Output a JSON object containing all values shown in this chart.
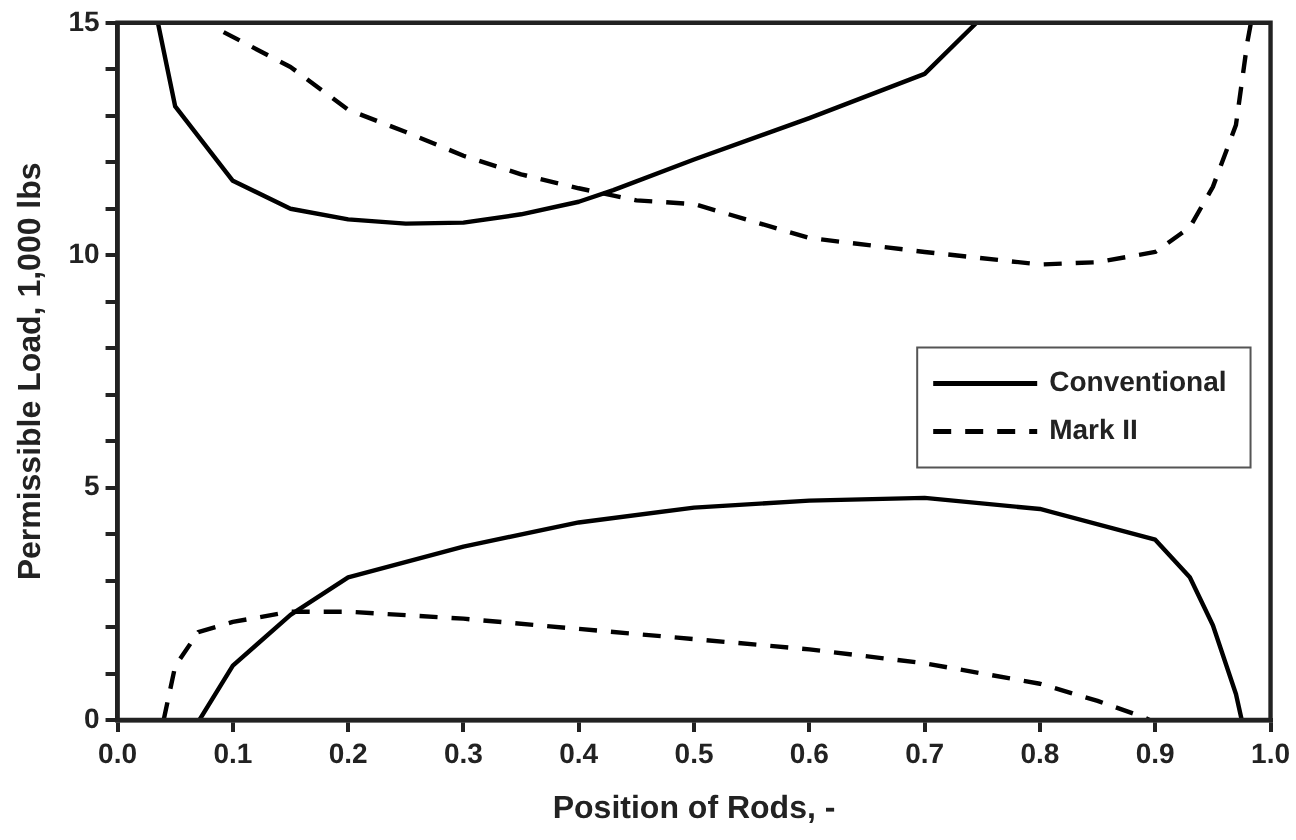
{
  "chart_data": {
    "type": "line",
    "xlabel": "Position of Rods, -",
    "ylabel": "Permissible Load, 1,000 lbs",
    "xlim": [
      0,
      1
    ],
    "xticks": [
      {
        "value": 0,
        "label": "0.0"
      },
      {
        "value": 0.1,
        "label": "0.1"
      },
      {
        "value": 0.2,
        "label": "0.2"
      },
      {
        "value": 0.3,
        "label": "0.3"
      },
      {
        "value": 0.4,
        "label": "0.4"
      },
      {
        "value": 0.5,
        "label": "0.5"
      },
      {
        "value": 0.6,
        "label": "0.6"
      },
      {
        "value": 0.7,
        "label": "0.7"
      },
      {
        "value": 0.8,
        "label": "0.8"
      },
      {
        "value": 0.9,
        "label": "0.9"
      },
      {
        "value": 1,
        "label": "1.0"
      }
    ],
    "ylim": [
      0,
      15
    ],
    "yticks": [
      0,
      {
        "value": 1,
        "label": null
      },
      {
        "value": 2,
        "label": null
      },
      {
        "value": 3,
        "label": null
      },
      {
        "value": 4,
        "label": null
      },
      5,
      {
        "value": 6,
        "label": null
      },
      {
        "value": 7,
        "label": null
      },
      {
        "value": 8,
        "label": null
      },
      {
        "value": 9,
        "label": null
      },
      10,
      {
        "value": 11,
        "label": null
      },
      {
        "value": 12,
        "label": null
      },
      {
        "value": 13,
        "label": null
      },
      {
        "value": 14,
        "label": null
      },
      15
    ],
    "grid": false,
    "legend": "right",
    "marker": "none",
    "series": [
      {
        "name": "Conventional",
        "color": "#000000",
        "line_style": "solid",
        "x": [
          0.035,
          0.05,
          0.1,
          0.15,
          0.2,
          0.25,
          0.3,
          0.35,
          0.4,
          0.43,
          0.5,
          0.6,
          0.7,
          0.745
        ],
        "values": [
          15,
          13.2,
          11.6,
          11.0,
          10.77,
          10.68,
          10.7,
          10.88,
          11.15,
          11.4,
          12.06,
          12.95,
          13.9,
          15
        ]
      },
      {
        "name": "Mark II",
        "color": "#000000",
        "line_style": "dashed",
        "x": [
          0.092,
          0.15,
          0.2,
          0.25,
          0.3,
          0.35,
          0.4,
          0.45,
          0.5,
          0.6,
          0.7,
          0.8,
          0.85,
          0.9,
          0.93,
          0.95,
          0.97,
          0.98,
          0.983
        ],
        "values": [
          14.8,
          14.05,
          13.13,
          12.65,
          12.14,
          11.74,
          11.44,
          11.18,
          11.1,
          10.37,
          10.07,
          9.8,
          9.85,
          10.07,
          10.6,
          11.47,
          12.8,
          14.6,
          15
        ]
      },
      {
        "color": "#000000",
        "line_style": "solid",
        "x": [
          0.071,
          0.1,
          0.15,
          0.2,
          0.3,
          0.4,
          0.5,
          0.6,
          0.7,
          0.8,
          0.9,
          0.93,
          0.95,
          0.97,
          0.975
        ],
        "values": [
          0,
          1.17,
          2.26,
          3.07,
          3.73,
          4.25,
          4.57,
          4.72,
          4.78,
          4.54,
          3.88,
          3.07,
          2.04,
          0.56,
          0
        ]
      },
      {
        "color": "#000000",
        "line_style": "dashed",
        "x": [
          0.04,
          0.05,
          0.07,
          0.1,
          0.15,
          0.2,
          0.3,
          0.4,
          0.5,
          0.6,
          0.7,
          0.8,
          0.85,
          0.89,
          0.895
        ],
        "values": [
          0,
          1.16,
          1.89,
          2.11,
          2.33,
          2.33,
          2.18,
          1.96,
          1.74,
          1.52,
          1.22,
          0.78,
          0.41,
          0.06,
          0
        ]
      }
    ]
  }
}
